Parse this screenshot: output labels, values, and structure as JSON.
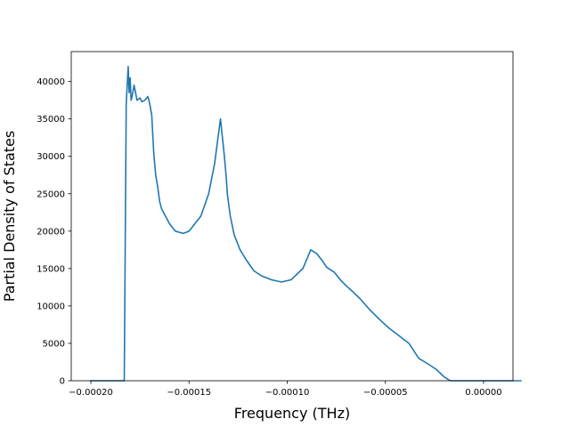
{
  "chart_data": {
    "type": "line",
    "title": "",
    "xlabel": "Frequency (THz)",
    "ylabel": "Partial Density of States",
    "xlim": [
      -0.00021,
      1.5e-05
    ],
    "ylim": [
      0,
      44000
    ],
    "grid": false,
    "legend": "none",
    "line_color": "#1f77b4",
    "x_ticks": [
      -0.0002,
      -0.00015,
      -0.0001,
      -5e-05,
      0.0
    ],
    "x_tick_labels": [
      "−0.00020",
      "−0.00015",
      "−0.00010",
      "−0.00005",
      "0.00000"
    ],
    "y_ticks": [
      0,
      5000,
      10000,
      15000,
      20000,
      25000,
      30000,
      35000,
      40000
    ],
    "y_tick_labels": [
      "0",
      "5000",
      "10000",
      "15000",
      "20000",
      "25000",
      "30000",
      "35000",
      "40000"
    ],
    "series": [
      {
        "x": [
          -0.0002,
          -0.000183,
          -0.000182,
          -0.000181,
          -0.0001805,
          -0.00018,
          -0.0001795,
          -0.000179,
          -0.000178,
          -0.0001765,
          -0.000175,
          -0.000174,
          -0.0001725,
          -0.000171,
          -0.00017,
          -0.000169,
          -0.000168,
          -0.000167,
          -0.000166,
          -0.0001655,
          -0.000165,
          -0.000164,
          -0.000162,
          -0.00016,
          -0.000157,
          -0.000153,
          -0.00015,
          -0.000147,
          -0.000144,
          -0.00014,
          -0.000137,
          -0.000134,
          -0.000132,
          -0.000131,
          -0.0001305,
          -0.00013,
          -0.000129,
          -0.000127,
          -0.000124,
          -0.000121,
          -0.000117,
          -0.000113,
          -0.000108,
          -0.000103,
          -9.8e-05,
          -9.2e-05,
          -8.8e-05,
          -8.5e-05,
          -8.2e-05,
          -8e-05,
          -7.9e-05,
          -7.6e-05,
          -7.3e-05,
          -7e-05,
          -6.7e-05,
          -6.3e-05,
          -5.8e-05,
          -5.3e-05,
          -4.8e-05,
          -4.3e-05,
          -3.8e-05,
          -3.3e-05,
          -2.8e-05,
          -2.4e-05,
          -2.2e-05,
          -2e-05,
          -1.7e-05,
          -1.3e-05,
          -8e-06,
          -3e-06,
          0.0,
          5e-06,
          1.9e-05
        ],
        "y": [
          0,
          0,
          37000,
          42000,
          38500,
          40500,
          37500,
          38000,
          39500,
          37500,
          37800,
          37300,
          37500,
          38000,
          37000,
          35500,
          30500,
          27500,
          26000,
          25000,
          24000,
          23000,
          22000,
          21000,
          20000,
          19700,
          20000,
          21000,
          22000,
          25000,
          29000,
          35000,
          30000,
          27000,
          25000,
          24000,
          22000,
          19500,
          17500,
          16200,
          14700,
          14000,
          13500,
          13200,
          13500,
          15000,
          17500,
          17000,
          16000,
          15200,
          15000,
          14500,
          13500,
          12700,
          12000,
          11000,
          9500,
          8200,
          7000,
          6000,
          5000,
          3000,
          2200,
          1500,
          1000,
          500,
          0,
          0,
          0,
          0,
          0,
          0,
          0
        ]
      }
    ]
  }
}
